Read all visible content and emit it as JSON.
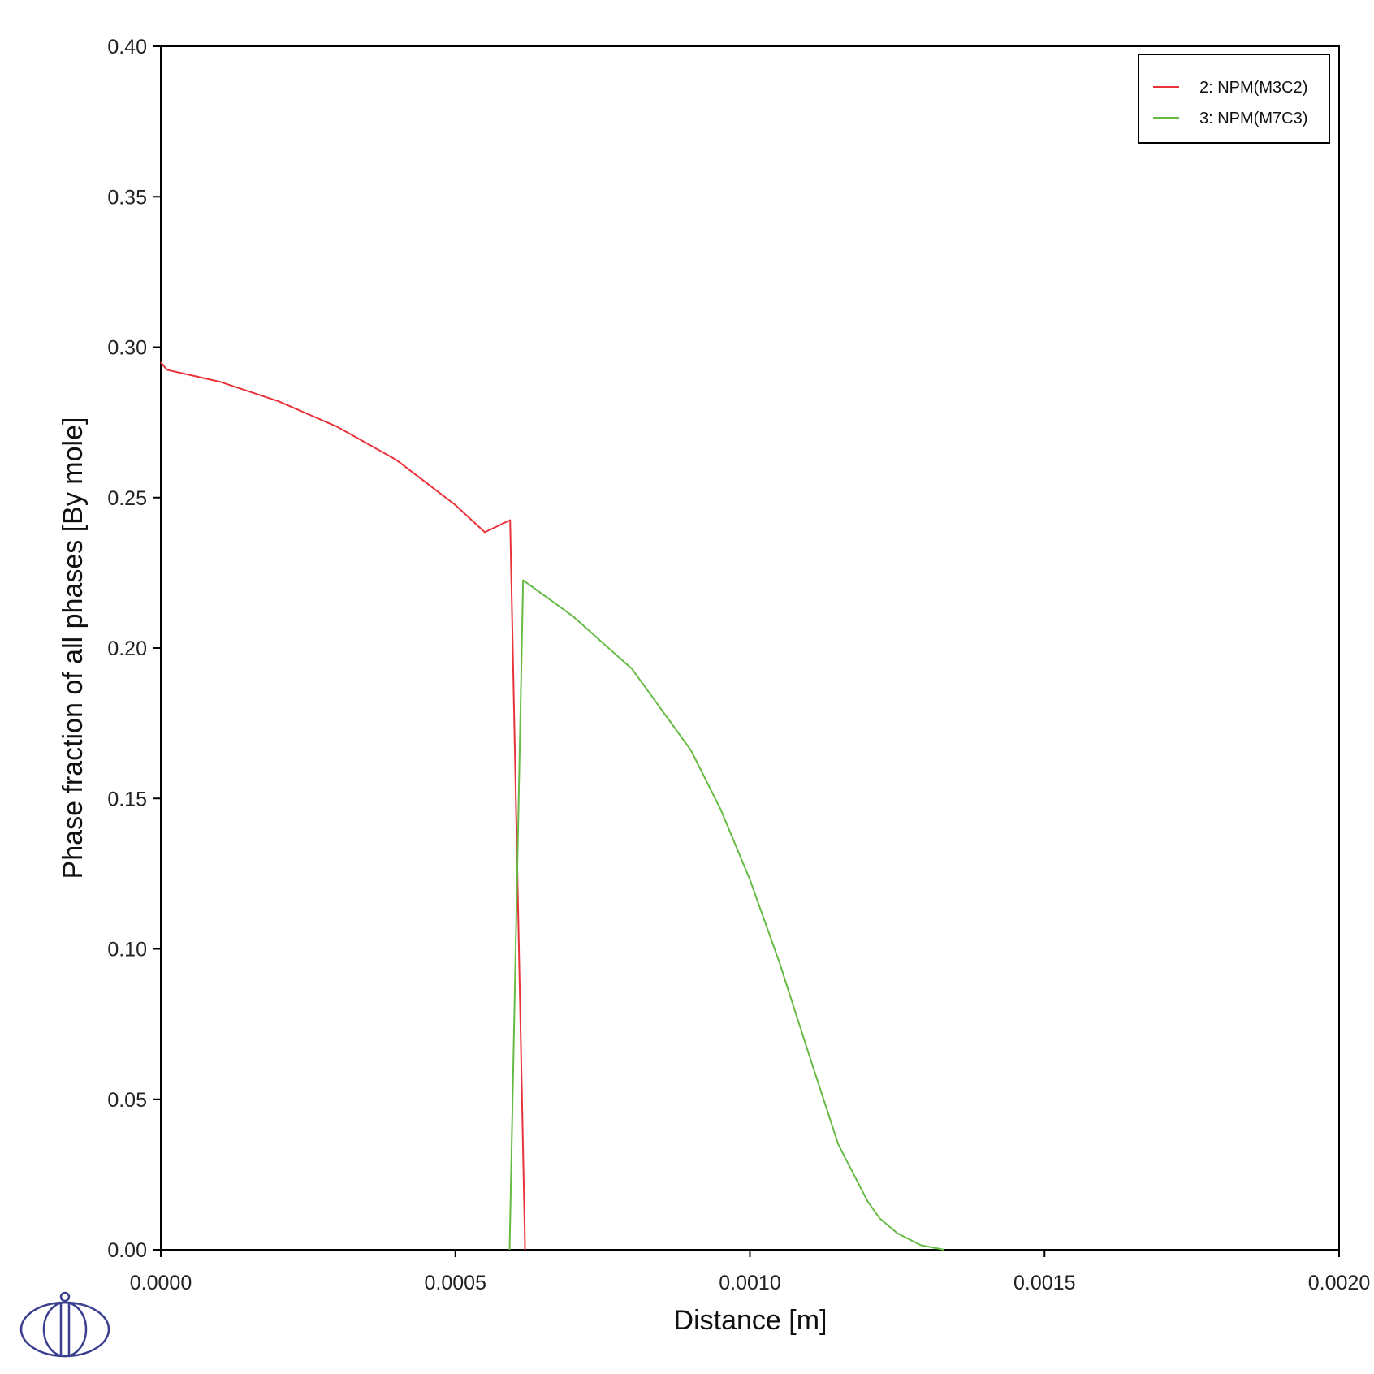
{
  "chart_data": {
    "type": "line",
    "title": "",
    "xlabel": "Distance [m]",
    "ylabel": "Phase fraction of all phases [By mole]",
    "xlim": [
      0,
      0.002
    ],
    "ylim": [
      0,
      0.4
    ],
    "xticks": [
      0,
      0.0005,
      0.001,
      0.0015,
      0.002
    ],
    "xtick_labels": [
      "0.0000",
      "0.0005",
      "0.0010",
      "0.0015",
      "0.0020"
    ],
    "yticks": [
      0,
      0.05,
      0.1,
      0.15,
      0.2,
      0.25,
      0.3,
      0.35,
      0.4
    ],
    "ytick_labels": [
      "0.00",
      "0.05",
      "0.10",
      "0.15",
      "0.20",
      "0.25",
      "0.30",
      "0.35",
      "0.40"
    ],
    "grid": false,
    "legend_position": "top-right",
    "series": [
      {
        "name": "2:  NPM(M3C2)",
        "color": "#e8333a",
        "x": [
          0.0,
          1e-05,
          0.0001,
          0.0002,
          0.0003,
          0.0004,
          0.0005,
          0.00055,
          0.000593,
          0.000618,
          0.000618
        ],
        "y": [
          0.295,
          0.2925,
          0.2885,
          0.282,
          0.2735,
          0.2625,
          0.2475,
          0.2385,
          0.2425,
          0.003,
          0.0
        ]
      },
      {
        "name": "3:  NPM(M7C3)",
        "color": "#66bb44",
        "x": [
          0.000592,
          0.000615,
          0.0007,
          0.0008,
          0.0009,
          0.00095,
          0.001,
          0.00105,
          0.0011,
          0.00115,
          0.0012,
          0.00122,
          0.00125,
          0.00129,
          0.00133
        ],
        "y": [
          0.0,
          0.2225,
          0.2105,
          0.193,
          0.166,
          0.1465,
          0.123,
          0.0955,
          0.065,
          0.035,
          0.016,
          0.0105,
          0.0055,
          0.0015,
          0.0
        ]
      }
    ]
  },
  "logo": {
    "name": "thermo-calc-logo",
    "color": "#3a3f8f"
  }
}
